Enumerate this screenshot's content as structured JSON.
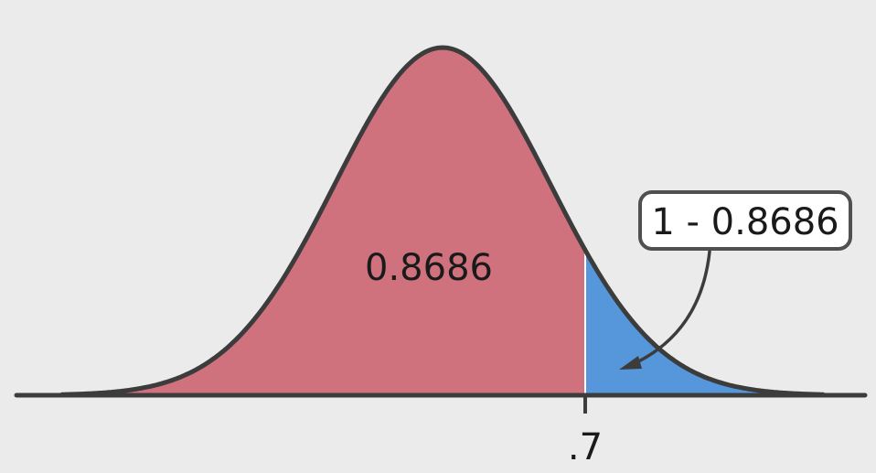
{
  "diagram": {
    "type": "normal-distribution-shaded",
    "left_area_label": "0.8686",
    "right_area_label": "1 - 0.8686",
    "cutoff_label": ".7",
    "colors": {
      "background": "#ebebeb",
      "left_region": "#cf727d",
      "right_region": "#5597da",
      "curve": "#3c3c3c",
      "callout_border": "#505050",
      "callout_fill": "#ffffff",
      "text": "#1a1a1a"
    }
  }
}
